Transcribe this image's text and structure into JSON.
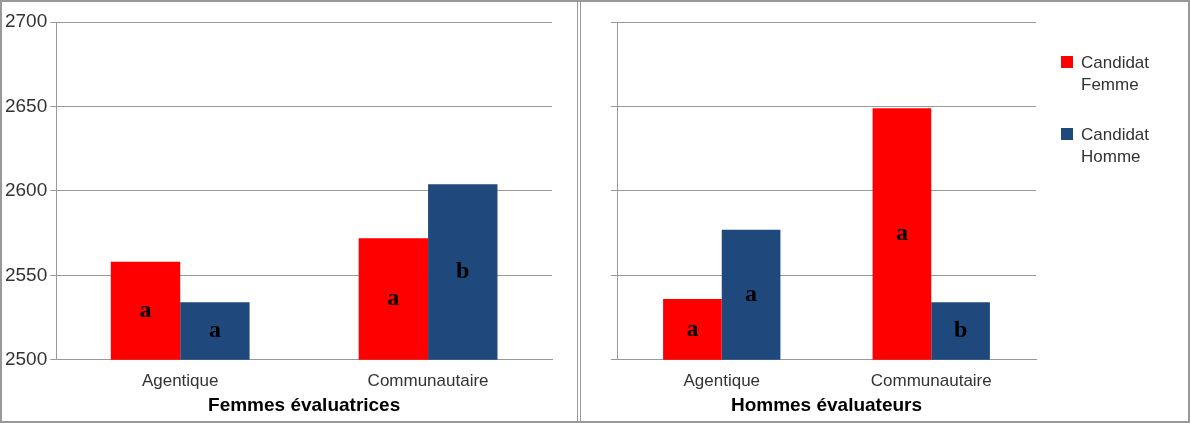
{
  "chart_data": [
    {
      "type": "bar",
      "categories": [
        "Agentique",
        "Communautaire"
      ],
      "xlabel": "Femmes évaluatrices",
      "series": [
        {
          "color": "#ff0000",
          "values": [
            2558,
            2572
          ],
          "value_labels": [
            "a",
            "a"
          ]
        },
        {
          "color": "#1f497d",
          "values": [
            2534,
            2604
          ],
          "value_labels": [
            "a",
            "b"
          ]
        }
      ],
      "ylim": [
        2500,
        2700
      ],
      "yticks": [
        2500,
        2550,
        2600,
        2650,
        2700
      ],
      "grid": "y",
      "legend": false
    },
    {
      "type": "bar",
      "categories": [
        "Agentique",
        "Communautaire"
      ],
      "xlabel": "Hommes évaluateurs",
      "series": [
        {
          "name": "Candidat Femme",
          "color": "#ff0000",
          "values": [
            2536,
            2649
          ],
          "value_labels": [
            "a",
            "a"
          ]
        },
        {
          "name": "Candidat Homme",
          "color": "#1f497d",
          "values": [
            2577,
            2534
          ],
          "value_labels": [
            "a",
            "b"
          ]
        }
      ],
      "ylim": [
        2500,
        2700
      ],
      "yticks": [
        2500,
        2550,
        2600,
        2650,
        2700
      ],
      "grid": "y",
      "legend": "right",
      "tick_labels": "x"
    }
  ]
}
